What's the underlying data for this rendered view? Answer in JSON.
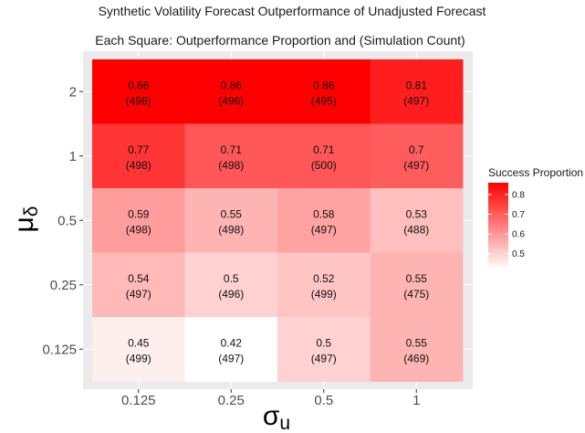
{
  "chart_data": {
    "type": "heatmap",
    "title": "Synthetic Volatility Forecast Outperformance of Unadjusted Forecast",
    "subtitle": "Each Square: Outperformance Proportion and (Simulation Count)",
    "xlabel": "σ",
    "xlabel_sub": "u",
    "ylabel": "μ",
    "ylabel_sub": "δ",
    "x_categories": [
      "0.125",
      "0.25",
      "0.5",
      "1"
    ],
    "y_categories": [
      "0.125",
      "0.25",
      "0.5",
      "1",
      "2"
    ],
    "cells": [
      {
        "x": "0.125",
        "y": "2",
        "value": 0.86,
        "value_label": "0.86",
        "count_label": "(498)"
      },
      {
        "x": "0.25",
        "y": "2",
        "value": 0.86,
        "value_label": "0.86",
        "count_label": "(496)"
      },
      {
        "x": "0.5",
        "y": "2",
        "value": 0.86,
        "value_label": "0.86",
        "count_label": "(495)"
      },
      {
        "x": "1",
        "y": "2",
        "value": 0.81,
        "value_label": "0.81",
        "count_label": "(497)"
      },
      {
        "x": "0.125",
        "y": "1",
        "value": 0.77,
        "value_label": "0.77",
        "count_label": "(498)"
      },
      {
        "x": "0.25",
        "y": "1",
        "value": 0.71,
        "value_label": "0.71",
        "count_label": "(498)"
      },
      {
        "x": "0.5",
        "y": "1",
        "value": 0.71,
        "value_label": "0.71",
        "count_label": "(500)"
      },
      {
        "x": "1",
        "y": "1",
        "value": 0.7,
        "value_label": "0.7",
        "count_label": "(497)"
      },
      {
        "x": "0.125",
        "y": "0.5",
        "value": 0.59,
        "value_label": "0.59",
        "count_label": "(498)"
      },
      {
        "x": "0.25",
        "y": "0.5",
        "value": 0.55,
        "value_label": "0.55",
        "count_label": "(498)"
      },
      {
        "x": "0.5",
        "y": "0.5",
        "value": 0.58,
        "value_label": "0.58",
        "count_label": "(497)"
      },
      {
        "x": "1",
        "y": "0.5",
        "value": 0.53,
        "value_label": "0.53",
        "count_label": "(488)"
      },
      {
        "x": "0.125",
        "y": "0.25",
        "value": 0.54,
        "value_label": "0.54",
        "count_label": "(497)"
      },
      {
        "x": "0.25",
        "y": "0.25",
        "value": 0.5,
        "value_label": "0.5",
        "count_label": "(496)"
      },
      {
        "x": "0.5",
        "y": "0.25",
        "value": 0.52,
        "value_label": "0.52",
        "count_label": "(499)"
      },
      {
        "x": "1",
        "y": "0.25",
        "value": 0.55,
        "value_label": "0.55",
        "count_label": "(475)"
      },
      {
        "x": "0.125",
        "y": "0.125",
        "value": 0.45,
        "value_label": "0.45",
        "count_label": "(499)"
      },
      {
        "x": "0.25",
        "y": "0.125",
        "value": 0.42,
        "value_label": "0.42",
        "count_label": "(497)"
      },
      {
        "x": "0.5",
        "y": "0.125",
        "value": 0.5,
        "value_label": "0.5",
        "count_label": "(497)"
      },
      {
        "x": "1",
        "y": "0.125",
        "value": 0.55,
        "value_label": "0.55",
        "count_label": "(469)"
      }
    ],
    "legend": {
      "title": "Success Proportion",
      "position": "right",
      "ticks": [
        0.5,
        0.6,
        0.7,
        0.8
      ],
      "tick_labels": [
        "0.5",
        "0.6",
        "0.7",
        "0.8"
      ],
      "range": [
        0.42,
        0.86
      ]
    },
    "color_low": "#ffffff",
    "color_high": "#ff0000",
    "panel_background": "#ebebeb",
    "grid": true
  }
}
